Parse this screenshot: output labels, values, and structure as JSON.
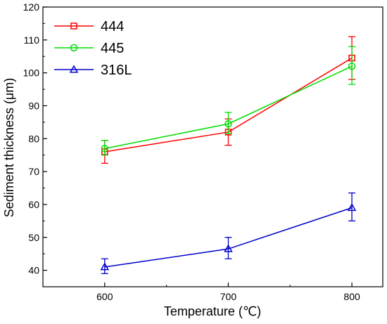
{
  "chart_data": {
    "type": "line",
    "title": "",
    "xlabel": "Temperature (℃)",
    "ylabel": "Sediment thickness (μm)",
    "x": [
      600,
      700,
      800
    ],
    "x_ticks": [
      600,
      700,
      800
    ],
    "y_ticks": [
      40,
      50,
      60,
      70,
      80,
      90,
      100,
      110,
      120
    ],
    "xlim": [
      550,
      825
    ],
    "ylim": [
      35,
      120
    ],
    "grid": false,
    "legend_position": "top-left",
    "series": [
      {
        "name": "444",
        "color": "#ff0000",
        "marker": "square",
        "values": [
          76.0,
          82.0,
          104.5
        ],
        "error_low": [
          72.5,
          78.0,
          98.0
        ],
        "error_high": [
          79.5,
          86.0,
          111.0
        ]
      },
      {
        "name": "445",
        "color": "#00dd00",
        "marker": "circle",
        "values": [
          77.0,
          84.5,
          102.0
        ],
        "error_low": [
          75.0,
          81.5,
          96.5
        ],
        "error_high": [
          79.5,
          88.0,
          108.0
        ]
      },
      {
        "name": "316L",
        "color": "#0000cc",
        "marker": "triangle",
        "values": [
          41.0,
          46.5,
          59.0
        ],
        "error_low": [
          39.0,
          43.5,
          55.0
        ],
        "error_high": [
          43.5,
          50.0,
          63.5
        ]
      }
    ]
  }
}
